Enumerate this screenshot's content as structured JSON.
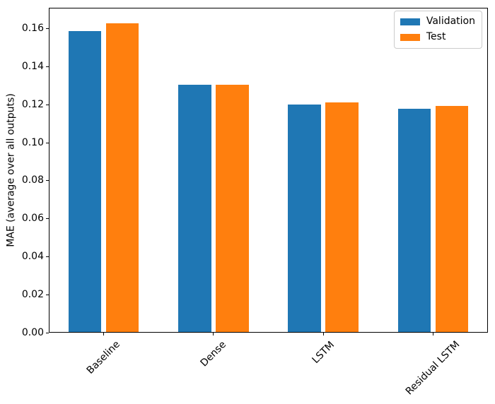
{
  "chart_data": {
    "type": "bar",
    "title": "",
    "categories": [
      "Baseline",
      "Dense",
      "LSTM",
      "Residual LSTM"
    ],
    "series": [
      {
        "name": "Validation",
        "color": "#1f77b4",
        "values": [
          0.159,
          0.1305,
          0.12,
          0.118
        ]
      },
      {
        "name": "Test",
        "color": "#ff7f0e",
        "values": [
          0.1631,
          0.1306,
          0.1213,
          0.1193
        ]
      }
    ],
    "xlabel": "",
    "ylabel": "MAE (average over all outputs)",
    "ylim": [
      0,
      0.1711
    ],
    "yticks": [
      0,
      0.02,
      0.04,
      0.06,
      0.08,
      0.1,
      0.12,
      0.14,
      0.16
    ],
    "ytick_labels": [
      "0.00",
      "0.02",
      "0.04",
      "0.06",
      "0.08",
      "0.10",
      "0.12",
      "0.14",
      "0.16"
    ],
    "xtick_rotation": 45,
    "grid": false,
    "legend_position": "upper right"
  },
  "colors": {
    "axis": "#000000",
    "legend_border": "#cccccc",
    "background": "#ffffff",
    "validation": "#1f77b4",
    "test": "#ff7f0e"
  }
}
